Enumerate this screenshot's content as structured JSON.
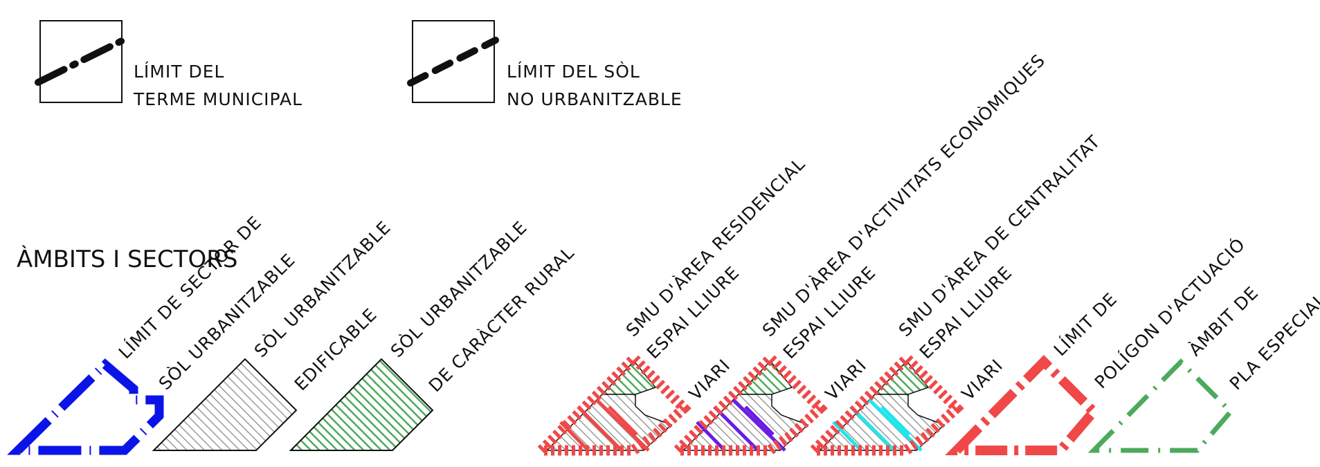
{
  "title": "ÀMBITS I SECTORS",
  "colors": {
    "ink": "#111111",
    "blue": "#0a14e6",
    "red": "#f04848",
    "green": "#4caa5c",
    "green_fill": "#8fc878",
    "violet": "#6a1ce6",
    "cyan": "#1ee6ee",
    "hatch_gray": "#9a9a9a"
  },
  "top_items": [
    {
      "name": "terme-municipal",
      "line_style": "dash-dot",
      "line1": "LÍMIT DEL",
      "line2": "TERME MUNICIPAL"
    },
    {
      "name": "sol-no-urbanitzable",
      "line_style": "dashed",
      "line1": "LÍMIT DEL SÒL",
      "line2": "NO URBANITZABLE"
    }
  ],
  "labels": {
    "sector_limit": [
      "LÍMIT DE SECTOR DE",
      "SÒL URBANITZABLE"
    ],
    "urbanitzable_edificable": [
      "SÒL URBANITZABLE",
      "EDIFICABLE"
    ],
    "urbanitzable_rural": [
      "SÒL URBANITZABLE",
      "DE CARÀCTER RURAL"
    ],
    "smu_residencial": {
      "main": "SMU D'ÀREA RESIDENCIAL",
      "open": "ESPAI LLIURE",
      "road": "VIARI"
    },
    "smu_activitats": {
      "main": "SMU D'ÀREA D'ACTIVITATS ECONÒMIQUES",
      "open": "ESPAI LLIURE",
      "road": "VIARI"
    },
    "smu_centralitat": {
      "main": "SMU D'ÀREA DE CENTRALITAT",
      "open": "ESPAI LLIURE",
      "road": "VIARI"
    },
    "poligon": [
      "LÍMIT DE",
      "POLÍGON D'ACTUACIÓ"
    ],
    "pla_especial": [
      "ÀMBIT DE",
      "PLA ESPECIAL"
    ]
  }
}
